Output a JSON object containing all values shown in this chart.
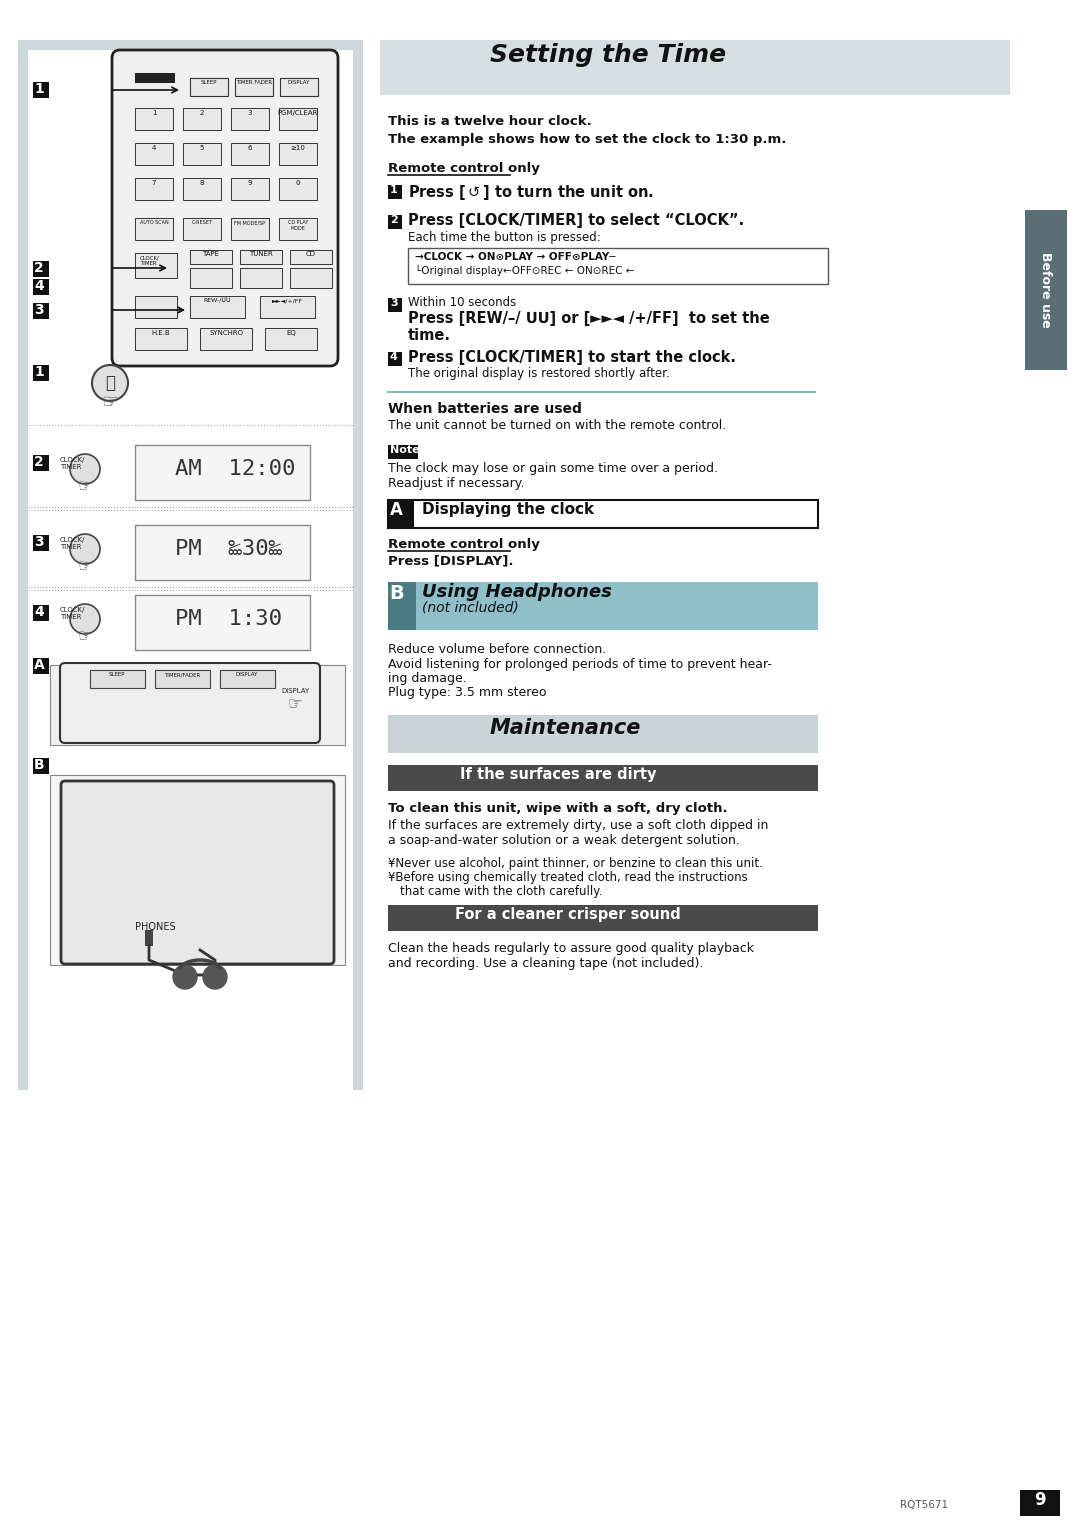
{
  "page_bg": "#ffffff",
  "left_panel_bg": "#dde4e6",
  "left_panel_inner_bg": "#ffffff",
  "header_bg": "#dde4e6",
  "section_a_bg": "#ffffff",
  "section_b_bg": "#c8d8dc",
  "maintenance_bg": "#d8dfe0",
  "subheader_bg": "#4a4a4a",
  "subheader_fg": "#ffffff",
  "title_setting": "Setting the Time",
  "title_using": "Using Headphones",
  "title_using2": "(not included)",
  "title_maintenance": "Maintenance",
  "sidebar_text": "Before use",
  "sidebar_bg": "#5a6e76",
  "page_number": "9",
  "model_code": "RQT5671"
}
